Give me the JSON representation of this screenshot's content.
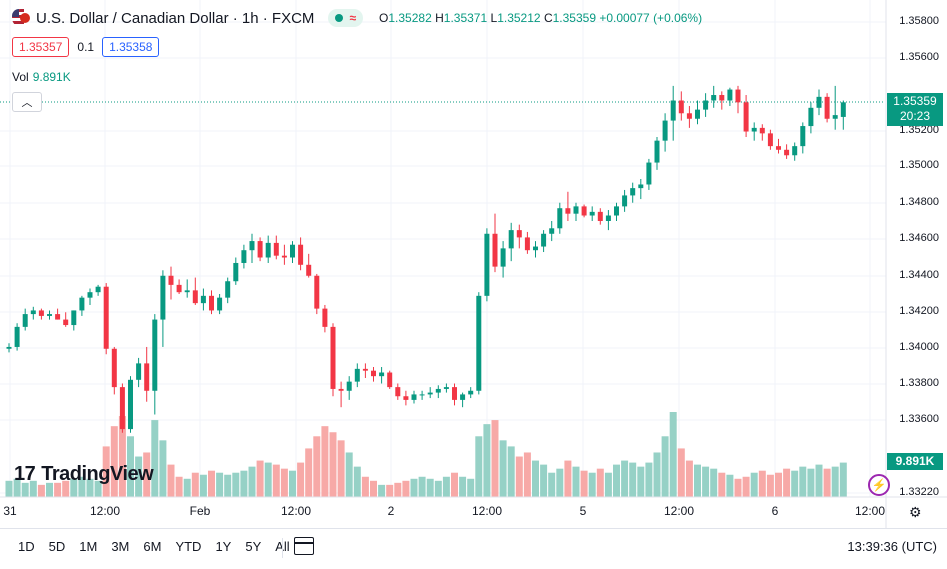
{
  "symbol": {
    "title": "U.S. Dollar / Canadian Dollar · 1h · FXCM",
    "ohlc": {
      "o_label": "O",
      "o": "1.35282",
      "h_label": "H",
      "h": "1.35371",
      "l_label": "L",
      "l": "1.35212",
      "c_label": "C",
      "c": "1.35359",
      "change": "+0.00077 (+0.06%)"
    }
  },
  "quote": {
    "sell": "1.35357",
    "spread": "0.1",
    "buy": "1.35358"
  },
  "volume": {
    "label": "Vol",
    "value": "9.891K"
  },
  "price_tag": {
    "price": "1.35359",
    "countdown": "20:23"
  },
  "volume_tag": "9.891K",
  "watermark": "TradingView",
  "colors": {
    "up": "#089981",
    "down": "#f23645",
    "up_vol": "#96d1c6",
    "down_vol": "#f7a9a7",
    "accent": "#2962ff"
  },
  "bottom": {
    "ranges": [
      "1D",
      "5D",
      "1M",
      "3M",
      "6M",
      "YTD",
      "1Y",
      "5Y",
      "All"
    ],
    "clock": "13:39:36 (UTC)"
  },
  "chart_data": {
    "type": "candlestick",
    "ylim": [
      1.3322,
      1.3584
    ],
    "y_ticks": [
      "1.35800",
      "1.35600",
      "1.35200",
      "1.35000",
      "1.34800",
      "1.34600",
      "1.34400",
      "1.34200",
      "1.34000",
      "1.33800",
      "1.33600",
      "1.33220"
    ],
    "x_ticks": [
      "31",
      "12:00",
      "Feb",
      "12:00",
      "2",
      "12:00",
      "5",
      "12:00",
      "6",
      "12:00"
    ],
    "candles": [
      [
        1.3401,
        1.3404,
        1.3399,
        1.3402,
        8
      ],
      [
        1.3402,
        1.3415,
        1.34,
        1.3413,
        9
      ],
      [
        1.3413,
        1.3423,
        1.3411,
        1.342,
        7
      ],
      [
        1.342,
        1.3424,
        1.3417,
        1.3422,
        8
      ],
      [
        1.3422,
        1.3423,
        1.3417,
        1.3419,
        6
      ],
      [
        1.3419,
        1.3422,
        1.3417,
        1.342,
        7
      ],
      [
        1.342,
        1.3423,
        1.3417,
        1.3417,
        7
      ],
      [
        1.3417,
        1.3421,
        1.3413,
        1.3414,
        8
      ],
      [
        1.3414,
        1.3422,
        1.3411,
        1.3422,
        9
      ],
      [
        1.3422,
        1.343,
        1.3419,
        1.3429,
        10
      ],
      [
        1.3429,
        1.3434,
        1.3425,
        1.3432,
        9
      ],
      [
        1.3432,
        1.3436,
        1.343,
        1.3435,
        8
      ],
      [
        1.3435,
        1.3437,
        1.3398,
        1.3401,
        25
      ],
      [
        1.3401,
        1.3402,
        1.3376,
        1.338,
        35
      ],
      [
        1.338,
        1.3382,
        1.3355,
        1.3357,
        40
      ],
      [
        1.3357,
        1.3386,
        1.3355,
        1.3384,
        30
      ],
      [
        1.3384,
        1.3396,
        1.338,
        1.3393,
        20
      ],
      [
        1.3393,
        1.3402,
        1.3372,
        1.3378,
        22
      ],
      [
        1.3378,
        1.342,
        1.3365,
        1.3417,
        38
      ],
      [
        1.3417,
        1.3444,
        1.3402,
        1.3441,
        28
      ],
      [
        1.3441,
        1.3446,
        1.3428,
        1.3436,
        16
      ],
      [
        1.3436,
        1.3439,
        1.3431,
        1.3432,
        10
      ],
      [
        1.3432,
        1.3439,
        1.3429,
        1.3433,
        9
      ],
      [
        1.3433,
        1.344,
        1.3425,
        1.3426,
        12
      ],
      [
        1.3426,
        1.3434,
        1.3422,
        1.343,
        11
      ],
      [
        1.343,
        1.3433,
        1.342,
        1.3422,
        13
      ],
      [
        1.3422,
        1.3431,
        1.342,
        1.3429,
        12
      ],
      [
        1.3429,
        1.344,
        1.3426,
        1.3438,
        11
      ],
      [
        1.3438,
        1.3451,
        1.3436,
        1.3448,
        12
      ],
      [
        1.3448,
        1.3458,
        1.3445,
        1.3455,
        13
      ],
      [
        1.3455,
        1.3464,
        1.3448,
        1.346,
        15
      ],
      [
        1.346,
        1.3462,
        1.3449,
        1.3451,
        18
      ],
      [
        1.3451,
        1.3463,
        1.3448,
        1.3459,
        17
      ],
      [
        1.3459,
        1.3463,
        1.345,
        1.3452,
        16
      ],
      [
        1.3452,
        1.3458,
        1.3447,
        1.3451,
        14
      ],
      [
        1.3451,
        1.346,
        1.3448,
        1.3458,
        13
      ],
      [
        1.3458,
        1.3462,
        1.3444,
        1.3447,
        17
      ],
      [
        1.3447,
        1.3453,
        1.344,
        1.3441,
        24
      ],
      [
        1.3441,
        1.3442,
        1.342,
        1.3423,
        30
      ],
      [
        1.3423,
        1.3425,
        1.341,
        1.3413,
        35
      ],
      [
        1.3413,
        1.3415,
        1.3375,
        1.3379,
        32
      ],
      [
        1.3379,
        1.3383,
        1.3369,
        1.3378,
        28
      ],
      [
        1.3378,
        1.3386,
        1.3373,
        1.3383,
        22
      ],
      [
        1.3383,
        1.3393,
        1.338,
        1.339,
        15
      ],
      [
        1.339,
        1.3393,
        1.3385,
        1.3389,
        10
      ],
      [
        1.3389,
        1.3391,
        1.3383,
        1.3386,
        8
      ],
      [
        1.3386,
        1.3391,
        1.3382,
        1.3388,
        6
      ],
      [
        1.3388,
        1.3389,
        1.3379,
        1.338,
        6
      ],
      [
        1.338,
        1.3382,
        1.3373,
        1.3375,
        7
      ],
      [
        1.3375,
        1.3378,
        1.337,
        1.3373,
        8
      ],
      [
        1.3373,
        1.3378,
        1.3371,
        1.3376,
        9
      ],
      [
        1.3376,
        1.3378,
        1.3373,
        1.3376,
        10
      ],
      [
        1.3376,
        1.338,
        1.3374,
        1.3377,
        9
      ],
      [
        1.3377,
        1.3381,
        1.3374,
        1.3379,
        8
      ],
      [
        1.3379,
        1.3382,
        1.3377,
        1.338,
        10
      ],
      [
        1.338,
        1.3382,
        1.337,
        1.3373,
        12
      ],
      [
        1.3373,
        1.3377,
        1.3369,
        1.3376,
        10
      ],
      [
        1.3376,
        1.338,
        1.3374,
        1.3378,
        9
      ],
      [
        1.3378,
        1.3432,
        1.3376,
        1.343,
        30
      ],
      [
        1.343,
        1.3467,
        1.3427,
        1.3464,
        36
      ],
      [
        1.3464,
        1.3475,
        1.3443,
        1.3446,
        38
      ],
      [
        1.3446,
        1.346,
        1.344,
        1.3456,
        28
      ],
      [
        1.3456,
        1.347,
        1.3449,
        1.3466,
        25
      ],
      [
        1.3466,
        1.3469,
        1.3456,
        1.3462,
        20
      ],
      [
        1.3462,
        1.3465,
        1.3453,
        1.3455,
        22
      ],
      [
        1.3455,
        1.346,
        1.3451,
        1.3457,
        18
      ],
      [
        1.3457,
        1.3466,
        1.3454,
        1.3464,
        16
      ],
      [
        1.3464,
        1.3471,
        1.346,
        1.3467,
        12
      ],
      [
        1.3467,
        1.3481,
        1.3464,
        1.3478,
        14
      ],
      [
        1.3478,
        1.3487,
        1.3471,
        1.3475,
        18
      ],
      [
        1.3475,
        1.3481,
        1.3471,
        1.3479,
        15
      ],
      [
        1.3479,
        1.348,
        1.3473,
        1.3474,
        13
      ],
      [
        1.3474,
        1.3479,
        1.3471,
        1.3476,
        12
      ],
      [
        1.3476,
        1.3478,
        1.3469,
        1.3471,
        14
      ],
      [
        1.3471,
        1.3477,
        1.3466,
        1.3474,
        12
      ],
      [
        1.3474,
        1.3481,
        1.3471,
        1.3479,
        16
      ],
      [
        1.3479,
        1.3488,
        1.3476,
        1.3485,
        18
      ],
      [
        1.3485,
        1.3492,
        1.3481,
        1.3489,
        17
      ],
      [
        1.3489,
        1.3494,
        1.3483,
        1.3491,
        15
      ],
      [
        1.3491,
        1.3505,
        1.3488,
        1.3503,
        17
      ],
      [
        1.3503,
        1.3517,
        1.3499,
        1.3515,
        22
      ],
      [
        1.3515,
        1.353,
        1.3509,
        1.3526,
        30
      ],
      [
        1.3526,
        1.3545,
        1.3515,
        1.3537,
        42
      ],
      [
        1.3537,
        1.3542,
        1.3526,
        1.353,
        24
      ],
      [
        1.353,
        1.3534,
        1.3522,
        1.3527,
        18
      ],
      [
        1.3527,
        1.3537,
        1.3524,
        1.3532,
        16
      ],
      [
        1.3532,
        1.3541,
        1.3528,
        1.3537,
        15
      ],
      [
        1.3537,
        1.3545,
        1.3533,
        1.354,
        14
      ],
      [
        1.354,
        1.3542,
        1.3532,
        1.3537,
        12
      ],
      [
        1.3537,
        1.3544,
        1.3534,
        1.3543,
        11
      ],
      [
        1.3543,
        1.3545,
        1.353,
        1.3536,
        9
      ],
      [
        1.3536,
        1.354,
        1.3517,
        1.352,
        10
      ],
      [
        1.352,
        1.3525,
        1.3515,
        1.3522,
        12
      ],
      [
        1.3522,
        1.3524,
        1.3515,
        1.3519,
        13
      ],
      [
        1.3519,
        1.3521,
        1.351,
        1.3512,
        11
      ],
      [
        1.3512,
        1.3516,
        1.3508,
        1.351,
        12
      ],
      [
        1.351,
        1.3513,
        1.3505,
        1.3507,
        14
      ],
      [
        1.3507,
        1.3514,
        1.3504,
        1.3512,
        13
      ],
      [
        1.3512,
        1.3525,
        1.3508,
        1.3523,
        15
      ],
      [
        1.3523,
        1.3536,
        1.3519,
        1.3533,
        14
      ],
      [
        1.3533,
        1.3543,
        1.3529,
        1.3539,
        16
      ],
      [
        1.3539,
        1.3541,
        1.3525,
        1.3527,
        14
      ],
      [
        1.3527,
        1.3545,
        1.3521,
        1.3529,
        15
      ],
      [
        1.3528,
        1.3537,
        1.3521,
        1.3536,
        17
      ]
    ]
  }
}
